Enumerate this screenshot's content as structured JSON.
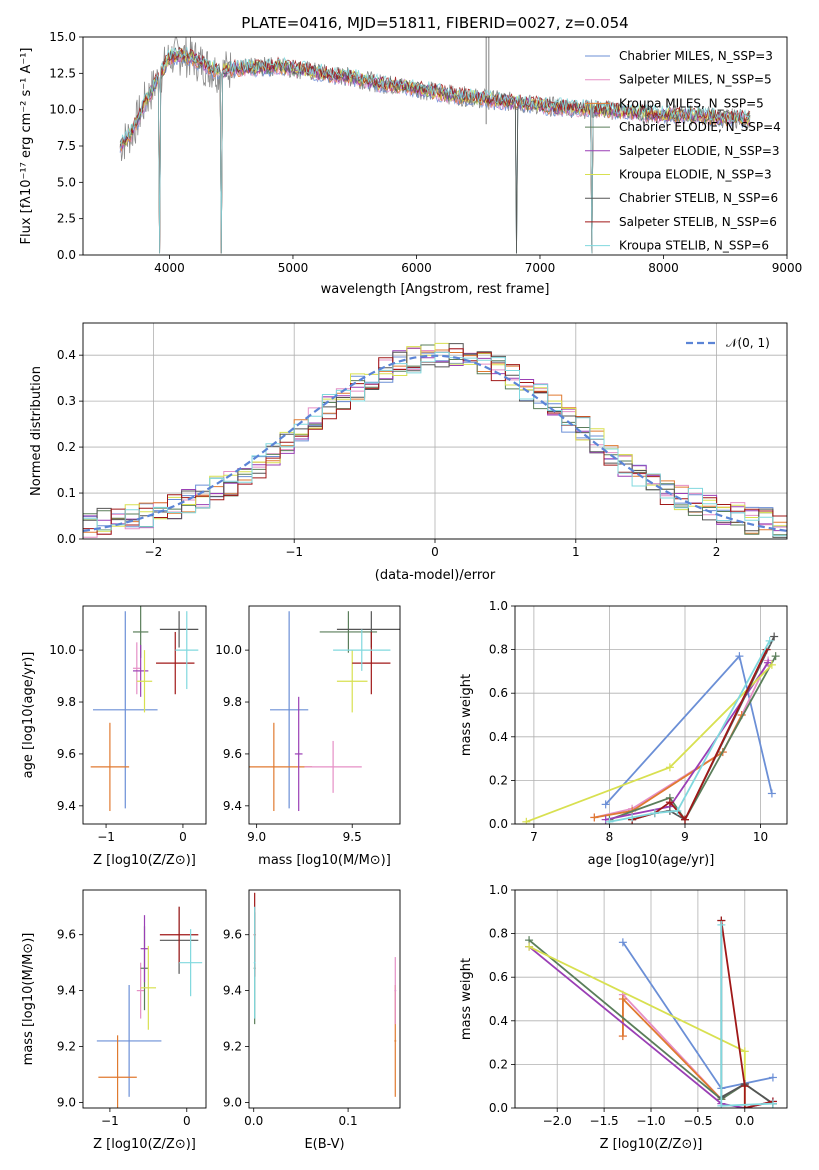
{
  "title": "PLATE=0416, MJD=51811, FIBERID=0027, z=0.054",
  "colors": [
    "#6b8fd6",
    "#e58fc6",
    "#e07a30",
    "#5a7e5a",
    "#9a3fb5",
    "#d8e050",
    "#555555",
    "#a01818",
    "#80d8de"
  ],
  "noise_color": "#8a8a8a",
  "chart_data": [
    {
      "type": "line",
      "panel": "spectrum",
      "xlabel": "wavelength [Angstrom, rest frame]",
      "ylabel": "Flux [fλ10⁻¹⁷ erg cm⁻² s⁻¹ A⁻¹]",
      "xlim": [
        3300,
        9000
      ],
      "ylim": [
        0,
        15
      ],
      "x_ticks": [
        4000,
        5000,
        6000,
        7000,
        8000,
        9000
      ],
      "y_ticks": [
        0.0,
        2.5,
        5.0,
        7.5,
        10.0,
        12.5,
        15.0
      ],
      "x_tick_labels": [
        "4000",
        "5000",
        "6000",
        "7000",
        "8000",
        "9000"
      ],
      "y_tick_labels": [
        "0.0",
        "2.5",
        "5.0",
        "7.5",
        "10.0",
        "12.5",
        "15.0"
      ],
      "legend_position": "top-right",
      "legend": [
        "Chabrier MILES, N_SSP=3",
        "Salpeter MILES, N_SSP=5",
        "Kroupa MILES, N_SSP=5",
        "Chabrier ELODIE, N_SSP=4",
        "Salpeter ELODIE, N_SSP=3",
        "Kroupa ELODIE, N_SSP=3",
        "Chabrier STELIB, N_SSP=6",
        "Salpeter STELIB, N_SSP=6",
        "Kroupa STELIB, N_SSP=6"
      ],
      "continuum": {
        "x": [
          3600,
          3700,
          3800,
          3900,
          4000,
          4100,
          4200,
          4300,
          4400,
          4500,
          4700,
          4900,
          5100,
          5300,
          5500,
          5700,
          5900,
          6100,
          6300,
          6500,
          6700,
          6900,
          7100,
          7300,
          7500,
          7700,
          7900,
          8100,
          8300,
          8500,
          8700
        ],
        "y": [
          7.5,
          8.5,
          10.5,
          12.0,
          13.6,
          13.8,
          13.5,
          13.0,
          12.6,
          12.8,
          12.9,
          13.0,
          12.7,
          12.4,
          12.2,
          11.8,
          11.6,
          11.3,
          11.0,
          10.8,
          10.6,
          10.4,
          10.2,
          10.1,
          10.0,
          9.9,
          9.7,
          9.6,
          9.6,
          9.4,
          9.4
        ]
      },
      "absorption_features": [
        {
          "x": 3920,
          "y": 0.0
        },
        {
          "x": 4420,
          "y": 0.0
        },
        {
          "x": 6810,
          "y": 0.0
        },
        {
          "x": 7420,
          "y": 0.0
        }
      ]
    },
    {
      "type": "histogram",
      "panel": "residuals",
      "xlabel": "(data-model)/error",
      "ylabel": "Normed distribution",
      "xlim": [
        -2.5,
        2.5
      ],
      "ylim": [
        0,
        0.47
      ],
      "grid": true,
      "x_ticks": [
        -2,
        -1,
        0,
        1,
        2
      ],
      "y_ticks": [
        0.0,
        0.1,
        0.2,
        0.3,
        0.4
      ],
      "x_tick_labels": [
        "−2",
        "−1",
        "0",
        "1",
        "2"
      ],
      "y_tick_labels": [
        "0.0",
        "0.1",
        "0.2",
        "0.3",
        "0.4"
      ],
      "reference_curve": "N(0,1)",
      "legend": [
        "𝒩(0, 1)"
      ],
      "legend_position": "top-right",
      "bin_edges": [
        -2.5,
        -2.4,
        -2.3,
        -2.2,
        -2.1,
        -2.0,
        -1.9,
        -1.8,
        -1.7,
        -1.6,
        -1.5,
        -1.4,
        -1.3,
        -1.2,
        -1.1,
        -1.0,
        -0.9,
        -0.8,
        -0.7,
        -0.6,
        -0.5,
        -0.4,
        -0.3,
        -0.2,
        -0.1,
        0.0,
        0.1,
        0.2,
        0.3,
        0.4,
        0.5,
        0.6,
        0.7,
        0.8,
        0.9,
        1.0,
        1.1,
        1.2,
        1.3,
        1.4,
        1.5,
        1.6,
        1.7,
        1.8,
        1.9,
        2.0,
        2.1,
        2.2,
        2.3,
        2.4,
        2.5
      ],
      "approx_density": [
        0.03,
        0.04,
        0.04,
        0.05,
        0.05,
        0.06,
        0.07,
        0.08,
        0.09,
        0.11,
        0.12,
        0.14,
        0.16,
        0.18,
        0.21,
        0.24,
        0.26,
        0.29,
        0.31,
        0.33,
        0.35,
        0.37,
        0.38,
        0.39,
        0.4,
        0.4,
        0.4,
        0.39,
        0.38,
        0.37,
        0.35,
        0.33,
        0.31,
        0.29,
        0.26,
        0.24,
        0.21,
        0.18,
        0.16,
        0.14,
        0.12,
        0.1,
        0.09,
        0.08,
        0.07,
        0.06,
        0.05,
        0.04,
        0.04,
        0.03
      ]
    },
    {
      "type": "scatter",
      "panel": "age-vs-Z",
      "xlabel": "Z [log10(Z/Z⊙)]",
      "ylabel": "age [log10(age/yr)]",
      "xlim": [
        -1.3,
        0.3
      ],
      "ylim": [
        9.33,
        10.17
      ],
      "x_ticks": [
        -1,
        0
      ],
      "y_ticks": [
        9.4,
        9.6,
        9.8,
        10.0
      ],
      "x_tick_labels": [
        "−1",
        "0"
      ],
      "y_tick_labels": [
        "9.4",
        "9.6",
        "9.8",
        "10.0"
      ]
    },
    {
      "type": "scatter",
      "panel": "age-vs-mass",
      "xlabel": "mass [log10(M/M⊙)]",
      "ylabel": "",
      "xlim": [
        8.96,
        9.75
      ],
      "ylim": [
        9.33,
        10.17
      ],
      "x_ticks": [
        9.0,
        9.5
      ],
      "y_ticks": [
        9.4,
        9.6,
        9.8,
        10.0
      ],
      "x_tick_labels": [
        "9.0",
        "9.5"
      ],
      "y_tick_labels": [
        "9.4",
        "9.6",
        "9.8",
        "10.0"
      ]
    },
    {
      "type": "line",
      "panel": "weight-vs-age",
      "xlabel": "age [log10(age/yr)]",
      "ylabel": "mass weight",
      "xlim": [
        6.75,
        10.35
      ],
      "ylim": [
        0,
        1
      ],
      "grid": true,
      "x_ticks": [
        7,
        8,
        9,
        10
      ],
      "y_ticks": [
        0.0,
        0.2,
        0.4,
        0.6,
        0.8,
        1.0
      ],
      "x_tick_labels": [
        "7",
        "8",
        "9",
        "10"
      ],
      "y_tick_labels": [
        "0.0",
        "0.2",
        "0.4",
        "0.6",
        "0.8",
        "1.0"
      ],
      "series": [
        {
          "x": [
            7.95,
            9.72,
            10.15
          ],
          "y": [
            0.09,
            0.77,
            0.14
          ]
        },
        {
          "x": [
            7.8,
            8.3,
            9.5,
            9.75,
            10.1
          ],
          "y": [
            0.03,
            0.07,
            0.33,
            0.5,
            0.75
          ]
        },
        {
          "x": [
            7.8,
            8.3,
            9.5,
            9.75
          ],
          "y": [
            0.03,
            0.06,
            0.33,
            0.5
          ]
        },
        {
          "x": [
            8.0,
            8.8,
            9.0,
            10.2
          ],
          "y": [
            0.02,
            0.12,
            0.02,
            0.77
          ]
        },
        {
          "x": [
            7.95,
            8.8,
            10.1
          ],
          "y": [
            0.02,
            0.08,
            0.74
          ]
        },
        {
          "x": [
            6.9,
            8.8,
            10.15
          ],
          "y": [
            0.01,
            0.26,
            0.73
          ]
        },
        {
          "x": [
            8.3,
            8.6,
            8.8,
            9.0,
            10.18
          ],
          "y": [
            0.02,
            0.05,
            0.06,
            0.02,
            0.86
          ]
        },
        {
          "x": [
            8.3,
            8.6,
            8.8,
            9.0,
            10.08
          ],
          "y": [
            0.02,
            0.05,
            0.1,
            0.02,
            0.8
          ]
        },
        {
          "x": [
            8.0,
            8.3,
            8.6,
            8.9,
            10.12
          ],
          "y": [
            0.01,
            0.03,
            0.05,
            0.06,
            0.84
          ]
        }
      ]
    },
    {
      "type": "scatter",
      "panel": "mass-vs-Z",
      "xlabel": "Z [log10(Z/Z⊙)]",
      "ylabel": "mass [log10(M/M⊙)]",
      "xlim": [
        -1.35,
        0.25
      ],
      "ylim": [
        8.98,
        9.76
      ],
      "x_ticks": [
        -1,
        0
      ],
      "y_ticks": [
        9.0,
        9.2,
        9.4,
        9.6
      ],
      "x_tick_labels": [
        "−1",
        "0"
      ],
      "y_tick_labels": [
        "9.0",
        "9.2",
        "9.4",
        "9.6"
      ]
    },
    {
      "type": "scatter",
      "panel": "mass-vs-ebv",
      "xlabel": "E(B-V)",
      "ylabel": "",
      "xlim": [
        -0.005,
        0.155
      ],
      "ylim": [
        8.98,
        9.76
      ],
      "x_ticks": [
        0.0,
        0.1
      ],
      "y_ticks": [
        9.0,
        9.2,
        9.4,
        9.6
      ],
      "x_tick_labels": [
        "0.0",
        "0.1"
      ],
      "y_tick_labels": [
        "9.0",
        "9.2",
        "9.4",
        "9.6"
      ]
    },
    {
      "type": "line",
      "panel": "weight-vs-Z",
      "xlabel": "Z [log10(Z/Z⊙)]",
      "ylabel": "mass weight",
      "xlim": [
        -2.45,
        0.45
      ],
      "ylim": [
        0,
        1
      ],
      "grid": true,
      "x_ticks": [
        -2.0,
        -1.5,
        -1.0,
        -0.5,
        0.0
      ],
      "y_ticks": [
        0.0,
        0.2,
        0.4,
        0.6,
        0.8,
        1.0
      ],
      "x_tick_labels": [
        "−2.0",
        "−1.5",
        "−1.0",
        "−0.5",
        "0.0"
      ],
      "y_tick_labels": [
        "0.0",
        "0.2",
        "0.4",
        "0.6",
        "0.8",
        "1.0"
      ],
      "series": [
        {
          "x": [
            -1.3,
            -0.25,
            0.3
          ],
          "y": [
            0.76,
            0.09,
            0.14
          ]
        },
        {
          "x": [
            -1.3,
            -1.3,
            -0.25,
            0.0
          ],
          "y": [
            0.33,
            0.52,
            0.04,
            0.11
          ]
        },
        {
          "x": [
            -1.3,
            -1.3,
            -0.25
          ],
          "y": [
            0.33,
            0.5,
            0.04
          ]
        },
        {
          "x": [
            -2.3,
            -0.25,
            0.0,
            0.3
          ],
          "y": [
            0.77,
            0.04,
            0.11,
            0.02
          ]
        },
        {
          "x": [
            -2.3,
            -0.25,
            0.0,
            0.3
          ],
          "y": [
            0.74,
            0.02,
            0.0,
            0.03
          ]
        },
        {
          "x": [
            -2.3,
            0.0,
            0.0
          ],
          "y": [
            0.74,
            0.26,
            0.0
          ]
        },
        {
          "x": [
            -0.25,
            -0.25,
            0.0,
            0.3
          ],
          "y": [
            0.86,
            0.05,
            0.11,
            0.02
          ]
        },
        {
          "x": [
            -0.25,
            0.0,
            0.0,
            0.3
          ],
          "y": [
            0.86,
            0.1,
            0.0,
            0.03
          ]
        },
        {
          "x": [
            -0.25,
            -0.25,
            0.3
          ],
          "y": [
            0.84,
            0.01,
            0.02
          ]
        }
      ]
    }
  ]
}
